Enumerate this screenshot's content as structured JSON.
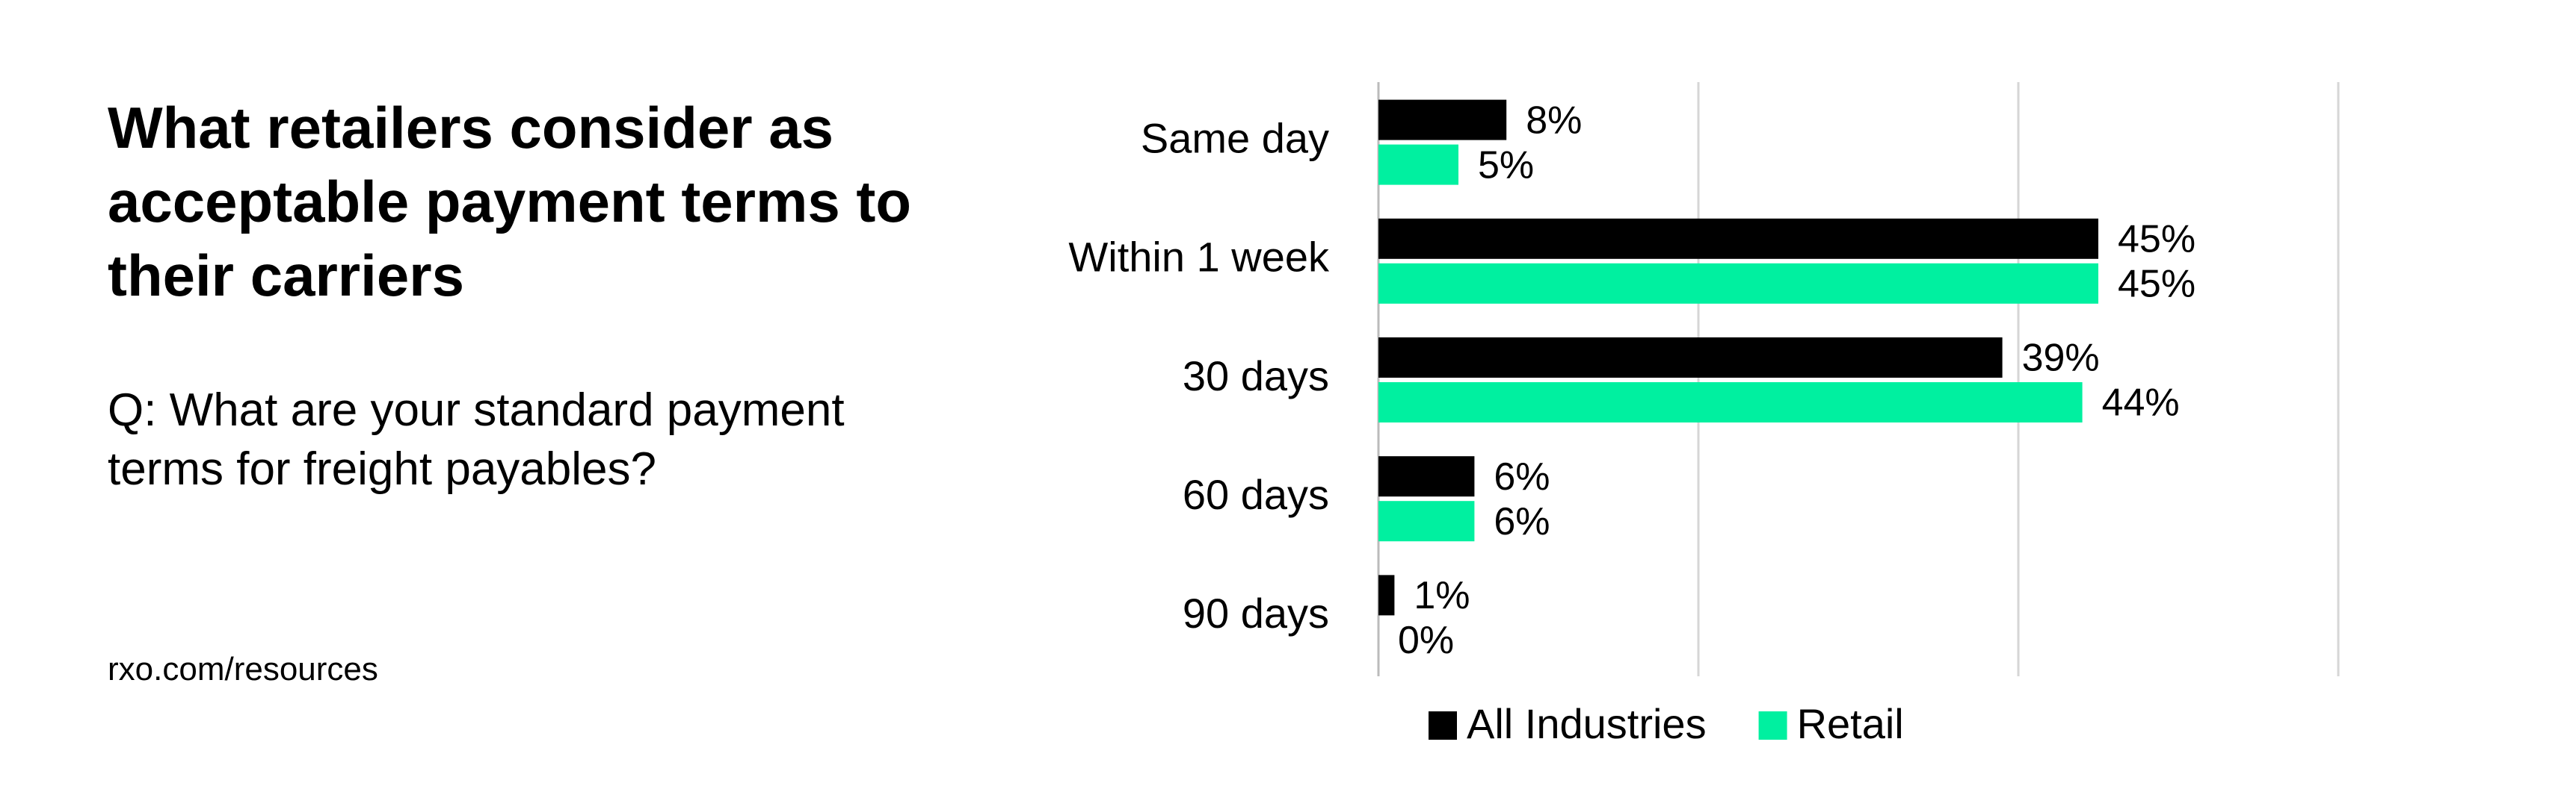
{
  "chart_data": {
    "type": "bar",
    "orientation": "horizontal",
    "title": "What retailers consider as acceptable payment terms to their carriers",
    "subtitle": "Q: What are your standard payment terms for freight payables?",
    "source": "rxo.com/resources",
    "categories": [
      "Same day",
      "Within 1 week",
      "30 days",
      "60 days",
      "90 days"
    ],
    "series": [
      {
        "name": "All Industries",
        "color": "#000000",
        "values": [
          8,
          45,
          39,
          6,
          1
        ],
        "value_labels": [
          "8%",
          "45%",
          "39%",
          "6%",
          "1%"
        ]
      },
      {
        "name": "Retail",
        "color": "#00f0a0",
        "values": [
          5,
          45,
          44,
          6,
          0
        ],
        "value_labels": [
          "5%",
          "45%",
          "44%",
          "6%",
          "0%"
        ]
      }
    ],
    "xlim": [
      0,
      60
    ],
    "xticks": [
      0,
      20,
      40,
      60
    ],
    "grid": true,
    "legend": "bottom"
  }
}
